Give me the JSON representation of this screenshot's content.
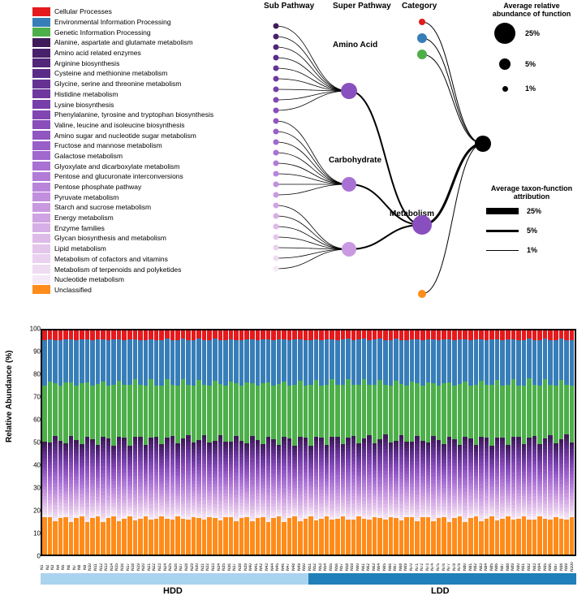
{
  "legend": {
    "items": [
      {
        "label": "Cellular Processes",
        "color": "#e41a1c"
      },
      {
        "label": "Environmental Information Processing",
        "color": "#377eb8"
      },
      {
        "label": "Genetic Information Processing",
        "color": "#4daf4a"
      },
      {
        "label": "Alanine, aspartate and glutamate metabolism",
        "color": "#3f1b5a"
      },
      {
        "label": "Amino acid related enzymes",
        "color": "#49206a"
      },
      {
        "label": "Arginine biosynthesis",
        "color": "#522679"
      },
      {
        "label": "Cysteine and methionine metabolism",
        "color": "#5b2c87"
      },
      {
        "label": "Glycine, serine and threonine metabolism",
        "color": "#653294"
      },
      {
        "label": "Histidine metabolism",
        "color": "#6e389f"
      },
      {
        "label": "Lysine biosynthesis",
        "color": "#773fa9"
      },
      {
        "label": "Phenylalanine, tyrosine and tryptophan biosynthesis",
        "color": "#8046b2"
      },
      {
        "label": "Valine, leucine and isoleucine biosynthesis",
        "color": "#894eba"
      },
      {
        "label": "Amino sugar and nucleotide sugar metabolism",
        "color": "#9156c1"
      },
      {
        "label": "Fructose and mannose metabolism",
        "color": "#995fc8"
      },
      {
        "label": "Galactose metabolism",
        "color": "#a168ce"
      },
      {
        "label": "Glyoxylate and dicarboxylate metabolism",
        "color": "#a971d3"
      },
      {
        "label": "Pentose and glucuronate interconversions",
        "color": "#b17bd7"
      },
      {
        "label": "Pentose phosphate pathway",
        "color": "#b985db"
      },
      {
        "label": "Pyruvate metabolism",
        "color": "#c18fde"
      },
      {
        "label": "Starch and sucrose metabolism",
        "color": "#c99ae1"
      },
      {
        "label": "Energy metabolism",
        "color": "#d0a4e4"
      },
      {
        "label": "Enzyme families",
        "color": "#d7afe7"
      },
      {
        "label": "Glycan biosynthesis and metabolism",
        "color": "#debae9"
      },
      {
        "label": "Lipid metabolism",
        "color": "#e4c6ec"
      },
      {
        "label": "Metabolism of cofactors and vitamins",
        "color": "#ead1ef"
      },
      {
        "label": "Metabolism of terpenoids and polyketides",
        "color": "#f0dcf2"
      },
      {
        "label": "Nucleotide metabolism",
        "color": "#f6e9f6"
      },
      {
        "label": "Unclassified",
        "color": "#ff8c1a"
      }
    ]
  },
  "tree": {
    "headings": {
      "sub": "Sub Pathway",
      "super": "Super Pathway",
      "category": "Category"
    },
    "labels": {
      "amino": "Amino Acid",
      "carb": "Carbohydrate",
      "metab": "Metabolism"
    },
    "size_legend": {
      "title": "Average relative\nabundance of function",
      "items": [
        {
          "pct": "25%",
          "diameter": 26
        },
        {
          "pct": "5%",
          "diameter": 14
        },
        {
          "pct": "1%",
          "diameter": 7
        }
      ]
    },
    "width_legend": {
      "title": "Average taxon-function\nattribution",
      "items": [
        {
          "pct": "25%",
          "thickness": 8
        },
        {
          "pct": "5%",
          "thickness": 3
        },
        {
          "pct": "1%",
          "thickness": 1
        }
      ]
    },
    "root_color": "#000000",
    "category_nodes": [
      {
        "color": "#e41a1c",
        "r": 4
      },
      {
        "color": "#377eb8",
        "r": 6
      },
      {
        "color": "#4daf4a",
        "r": 6
      },
      {
        "color": "#8a4fbf",
        "r": 12
      },
      {
        "color": "#ff8c1a",
        "r": 5
      }
    ],
    "super_nodes": [
      {
        "color": "#8a4fbf",
        "r": 10
      },
      {
        "color": "#a971d3",
        "r": 9
      },
      {
        "color": "#c99ae1",
        "r": 9
      }
    ],
    "sub_groups": {
      "amino_count": 9,
      "carb_count": 8,
      "other_count": 7
    }
  },
  "chart": {
    "y_title": "Relative Abundance (%)",
    "ylim": [
      0,
      100
    ],
    "ytick_step": 10,
    "groups": [
      {
        "label": "HDD",
        "color": "#a9d3ef",
        "count": 50
      },
      {
        "label": "LDD",
        "color": "#1f7fb8",
        "count": 50
      }
    ],
    "label_fontsize": 8,
    "background_color": "#ffffff",
    "composition": [
      {
        "color": "#ff8c1a",
        "pct": 16
      },
      {
        "color": "#f6e9f6",
        "pct": 1.2
      },
      {
        "color": "#f0dcf2",
        "pct": 1.2
      },
      {
        "color": "#ead1ef",
        "pct": 1.2
      },
      {
        "color": "#e4c6ec",
        "pct": 1.5
      },
      {
        "color": "#debae9",
        "pct": 1.5
      },
      {
        "color": "#d7afe7",
        "pct": 1.5
      },
      {
        "color": "#d0a4e4",
        "pct": 1.5
      },
      {
        "color": "#c99ae1",
        "pct": 1.5
      },
      {
        "color": "#c18fde",
        "pct": 1.5
      },
      {
        "color": "#b985db",
        "pct": 1.5
      },
      {
        "color": "#b17bd7",
        "pct": 1.5
      },
      {
        "color": "#a971d3",
        "pct": 1.5
      },
      {
        "color": "#a168ce",
        "pct": 1.5
      },
      {
        "color": "#995fc8",
        "pct": 1.5
      },
      {
        "color": "#9156c1",
        "pct": 1.5
      },
      {
        "color": "#894eba",
        "pct": 1.5
      },
      {
        "color": "#8046b2",
        "pct": 1.5
      },
      {
        "color": "#773fa9",
        "pct": 1.5
      },
      {
        "color": "#6e389f",
        "pct": 1.5
      },
      {
        "color": "#653294",
        "pct": 1.5
      },
      {
        "color": "#5b2c87",
        "pct": 1.5
      },
      {
        "color": "#522679",
        "pct": 1.5
      },
      {
        "color": "#49206a",
        "pct": 1.5
      },
      {
        "color": "#3f1b5a",
        "pct": 1.5
      },
      {
        "color": "#4daf4a",
        "pct": 25
      },
      {
        "color": "#377eb8",
        "pct": 19.5
      },
      {
        "color": "#e41a1c",
        "pct": 4.0
      }
    ]
  }
}
